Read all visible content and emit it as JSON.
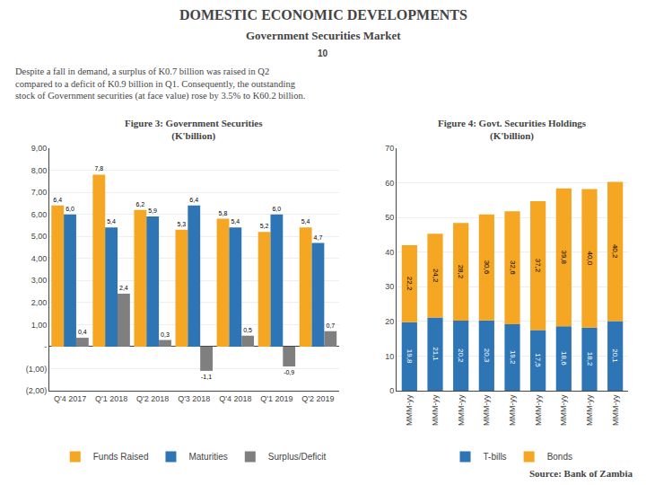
{
  "title": "DOMESTIC ECONOMIC DEVELOPMENTS",
  "subtitle": "Government Securities Market",
  "annotations": [
    "10",
    "Despite a fall in demand, a surplus of K0.7 billion was raised in Q2\ncompared to a deficit of K0.9 billion in Q1. Consequently, the outstanding\nstock of Government securities (at face value) rose by 3.5% to K60.2 billion.",
    "Source: Bank of Zambia"
  ],
  "chart_data": [
    {
      "type": "bar",
      "title": "Figure 3: Government Securities\n(K'billion)",
      "categories": [
        "Q'4 2017",
        "Q'1 2018",
        "Q'2 2018",
        "Q'3 2018",
        "Q'4 2018",
        "Q'1 2019",
        "Q'2 2019"
      ],
      "series": [
        {
          "name": "Funds Raised",
          "color": "#F5A623",
          "values": [
            6.4,
            7.8,
            6.2,
            5.3,
            5.8,
            5.2,
            5.4
          ],
          "value_labels": [
            "6,4",
            "7,8",
            "6,2",
            "5,3",
            "5,8",
            "5,2",
            "5,4"
          ]
        },
        {
          "name": "Maturities",
          "color": "#2E75B6",
          "values": [
            6.0,
            5.4,
            5.9,
            6.4,
            5.4,
            6.0,
            4.7
          ],
          "value_labels": [
            "6,0",
            "5,4",
            "5,9",
            "6,4",
            "5,4",
            "6,0",
            "4,7"
          ]
        },
        {
          "name": "Surplus/Deficit",
          "color": "#7F7F7F",
          "values": [
            0.4,
            2.4,
            0.3,
            -1.1,
            0.5,
            -0.9,
            0.7
          ],
          "value_labels": [
            "0,4",
            "2,4",
            "0,3",
            "-1,1",
            "0,5",
            "-0,9",
            "0,7"
          ]
        }
      ],
      "ylim": [
        -2.0,
        9.0
      ],
      "yticks": [
        {
          "value": -2.0,
          "label": "(2,00)"
        },
        {
          "value": -1.0,
          "label": "(1,00)"
        },
        {
          "value": 0.0,
          "label": "-"
        },
        {
          "value": 1.0,
          "label": "1,00"
        },
        {
          "value": 2.0,
          "label": "2,00"
        },
        {
          "value": 3.0,
          "label": "3,00"
        },
        {
          "value": 4.0,
          "label": "4,00"
        },
        {
          "value": 5.0,
          "label": "5,00"
        },
        {
          "value": 6.0,
          "label": "6,00"
        },
        {
          "value": 7.0,
          "label": "7,00"
        },
        {
          "value": 8.0,
          "label": "8,00"
        },
        {
          "value": 9.0,
          "label": "9,00"
        }
      ],
      "grid": true,
      "legend": "bottom",
      "data_labels": true
    },
    {
      "type": "bar",
      "title": "Figure 4: Govt. Securities Holdings\n(K'billion)",
      "categories": [
        "MMM-yy",
        "MMM-yy",
        "MMM-yy",
        "MMM-yy",
        "MMM-yy",
        "MMM-yy",
        "MMM-yy",
        "MMM-yy",
        "MMM-yy"
      ],
      "series": [
        {
          "name": "T-bills",
          "color": "#2E75B6",
          "values": [
            19.8,
            21.1,
            20.2,
            20.3,
            19.2,
            17.5,
            18.6,
            18.2,
            20.1
          ],
          "value_labels": [
            "19,8",
            "21,1",
            "20,2",
            "20,3",
            "19,2",
            "17,5",
            "18,6",
            "18,2",
            "20,1"
          ]
        },
        {
          "name": "Bonds",
          "color": "#F5A623",
          "values": [
            22.2,
            24.2,
            28.2,
            30.6,
            32.6,
            37.2,
            39.8,
            40.0,
            40.2
          ],
          "value_labels": [
            "22,2",
            "24,2",
            "28,2",
            "30,6",
            "32,6",
            "37,2",
            "39,8",
            "40,0",
            "40,2"
          ]
        }
      ],
      "ylim": [
        0,
        70
      ],
      "yticks": [
        0,
        10,
        20,
        30,
        40,
        50,
        60,
        70
      ],
      "grid": true,
      "legend": "bottom",
      "stacked": true,
      "data_labels": true
    }
  ]
}
